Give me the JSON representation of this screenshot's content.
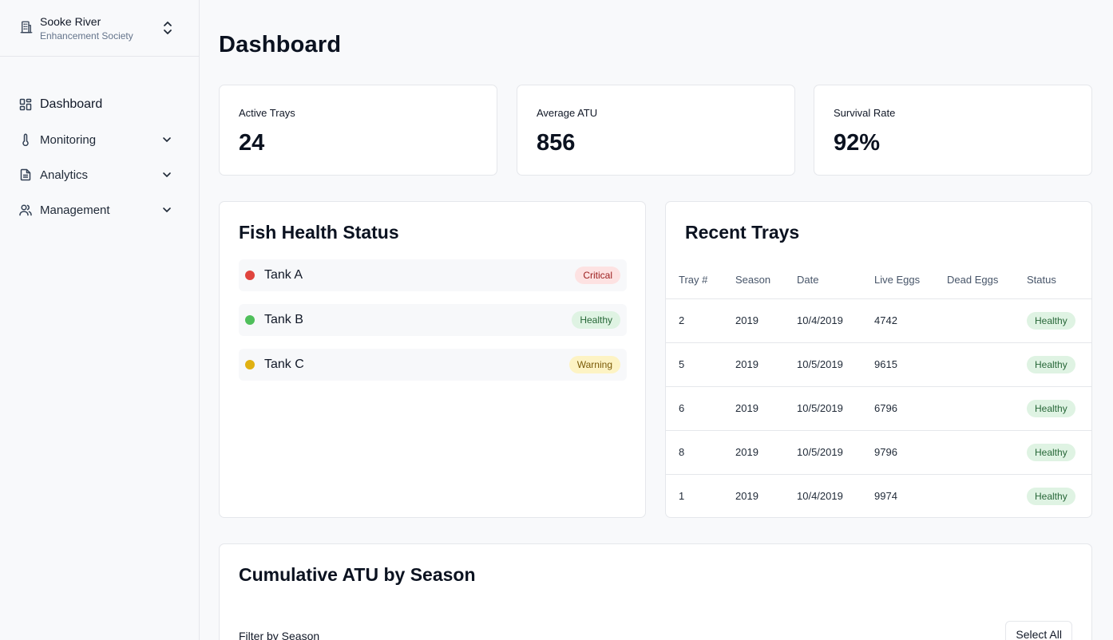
{
  "org": {
    "name": "Sooke River",
    "subtitle": "Enhancement Society",
    "icon": "building-icon",
    "switch_icon": "chevrons-up-down-icon"
  },
  "nav": {
    "items": [
      {
        "label": "Dashboard",
        "icon": "layout-grid-icon",
        "active": true
      },
      {
        "label": "Monitoring",
        "icon": "thermometer-icon",
        "expandable": true
      },
      {
        "label": "Analytics",
        "icon": "file-text-icon",
        "expandable": true
      },
      {
        "label": "Management",
        "icon": "users-icon",
        "expandable": true
      }
    ]
  },
  "page": {
    "title": "Dashboard"
  },
  "stats": [
    {
      "label": "Active Trays",
      "value": "24"
    },
    {
      "label": "Average ATU",
      "value": "856"
    },
    {
      "label": "Survival Rate",
      "value": "92%"
    }
  ],
  "health": {
    "title": "Fish Health Status",
    "tanks": [
      {
        "name": "Tank A",
        "status": "Critical",
        "color": "#e0443e"
      },
      {
        "name": "Tank B",
        "status": "Healthy",
        "color": "#4fbf5b"
      },
      {
        "name": "Tank C",
        "status": "Warning",
        "color": "#e0b112"
      }
    ]
  },
  "trays": {
    "title": "Recent Trays",
    "columns": [
      "Tray #",
      "Season",
      "Date",
      "Live Eggs",
      "Dead Eggs",
      "Status"
    ],
    "rows": [
      {
        "tray": "2",
        "season": "2019",
        "date": "10/4/2019",
        "live": "4742",
        "dead": "",
        "status": "Healthy"
      },
      {
        "tray": "5",
        "season": "2019",
        "date": "10/5/2019",
        "live": "9615",
        "dead": "",
        "status": "Healthy"
      },
      {
        "tray": "6",
        "season": "2019",
        "date": "10/5/2019",
        "live": "6796",
        "dead": "",
        "status": "Healthy"
      },
      {
        "tray": "8",
        "season": "2019",
        "date": "10/5/2019",
        "live": "9796",
        "dead": "",
        "status": "Healthy"
      },
      {
        "tray": "1",
        "season": "2019",
        "date": "10/4/2019",
        "live": "9974",
        "dead": "",
        "status": "Healthy"
      }
    ]
  },
  "atu": {
    "title": "Cumulative ATU by Season",
    "filter_label": "Filter by Season",
    "select_all_label": "Select All"
  }
}
